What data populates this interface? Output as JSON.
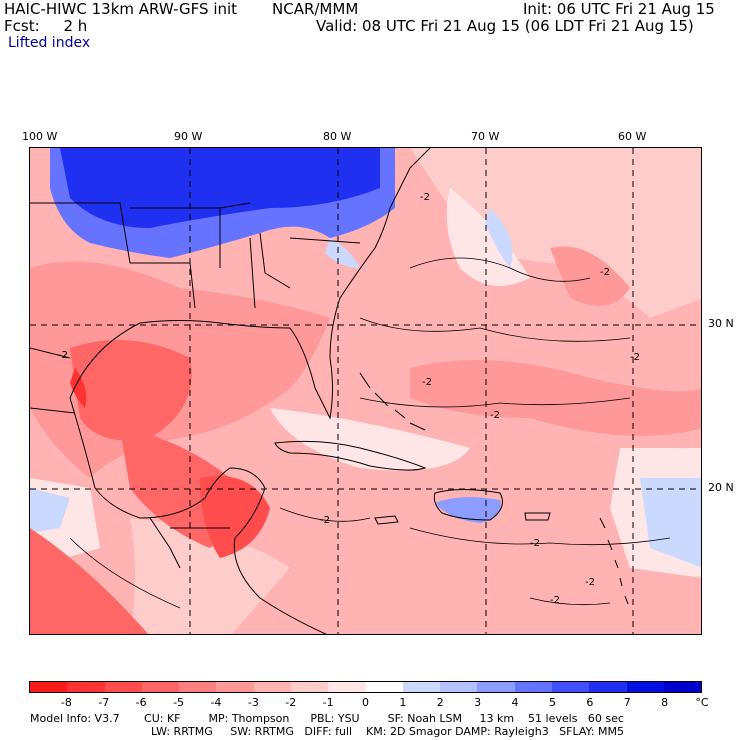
{
  "header": {
    "title_left": "HAIC-HIWC 13km ARW-GFS init",
    "org": "NCAR/MMM",
    "init": "Init: 06 UTC Fri 21 Aug 15",
    "fcst": "Fcst:     2 h",
    "valid": "Valid: 08 UTC Fri 21 Aug 15 (06 LDT Fri 21 Aug 15)",
    "field": "Lifted index"
  },
  "map": {
    "lon_labels": [
      "100 W",
      "90 W",
      "80 W",
      "70 W",
      "60 W"
    ],
    "lat_labels": [
      "30 N",
      "20 N"
    ],
    "contour_label": "-2"
  },
  "colorbar": {
    "tick_labels": [
      "-8",
      "-7",
      "-6",
      "-5",
      "-4",
      "-3",
      "-2",
      "-1",
      "0",
      "1",
      "2",
      "3",
      "4",
      "5",
      "6",
      "7",
      "8"
    ],
    "unit": "°C",
    "colors": [
      "#ff1a1a",
      "#ff3333",
      "#ff4d4d",
      "#ff6666",
      "#ff8080",
      "#ff9999",
      "#ffb3b3",
      "#ffcccc",
      "#ffe6e6",
      "#ffffff",
      "#ccd9ff",
      "#b3c2ff",
      "#8c9cff",
      "#6673ff",
      "#4050ff",
      "#2030f0",
      "#0010e0",
      "#0000cc"
    ]
  },
  "model_info": {
    "line1": "Model Info: V3.7       CU: KF        MP: Thompson      PBL: YSU        SF: Noah LSM     13 km    51 levels   60 sec",
    "line2": "LW: RRTMG     SW: RRTMG   DIFF: full    KM: 2D Smagor DAMP: Rayleigh3   SFLAY: MM5"
  }
}
